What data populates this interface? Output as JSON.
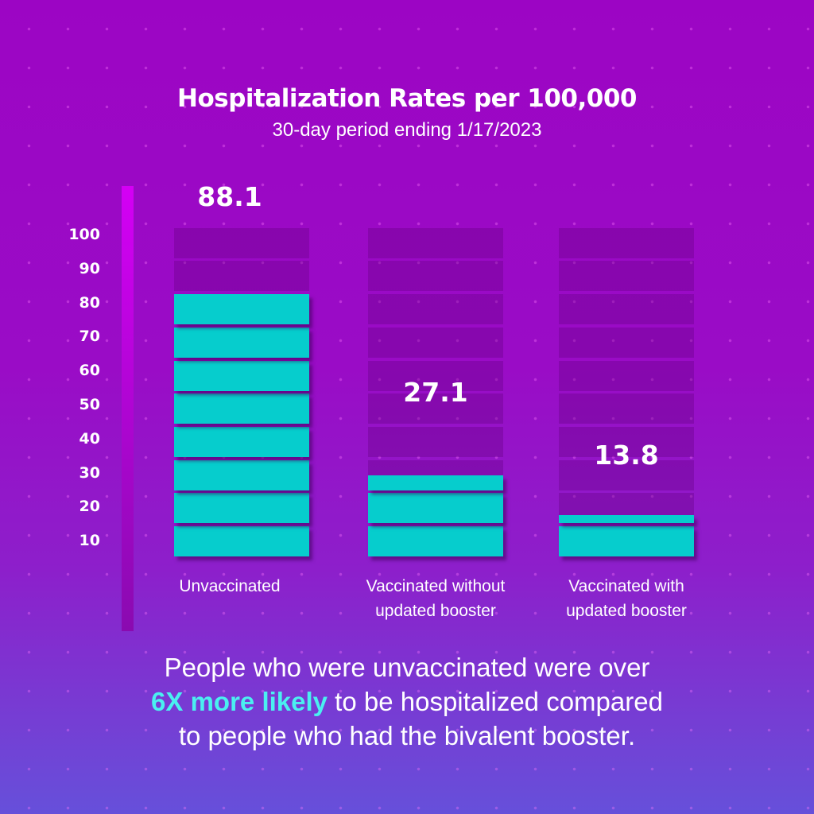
{
  "chart_data": {
    "type": "bar",
    "title": "Hospitalization Rates per 100,000",
    "subtitle": "30-day period ending 1/17/2023",
    "categories": [
      "Unvaccinated",
      "Vaccinated without updated booster",
      "Vaccinated with updated booster"
    ],
    "category_lines": [
      [
        "Unvaccinated"
      ],
      [
        "Vaccinated without",
        "updated booster"
      ],
      [
        "Vaccinated with",
        "updated booster"
      ]
    ],
    "values": [
      88.1,
      27.1,
      13.8
    ],
    "value_labels": [
      "88.1",
      "27.1",
      "13.8"
    ],
    "yticks": [
      "100",
      "90",
      "80",
      "70",
      "60",
      "50",
      "40",
      "30",
      "20",
      "10"
    ],
    "ylim": [
      0,
      110
    ],
    "grid": false,
    "colors": {
      "bar": "#06cdcd",
      "track": "#7a10a6",
      "axis": "#d400f5",
      "background_top": "#9c05c4",
      "background_bottom": "#6650da",
      "highlight": "#4af0f0"
    }
  },
  "footer": {
    "line1": "People who were unvaccinated were over",
    "highlight": "6X more likely",
    "line2_rest": " to be hospitalized compared",
    "line3": "to people who had the bivalent booster."
  }
}
